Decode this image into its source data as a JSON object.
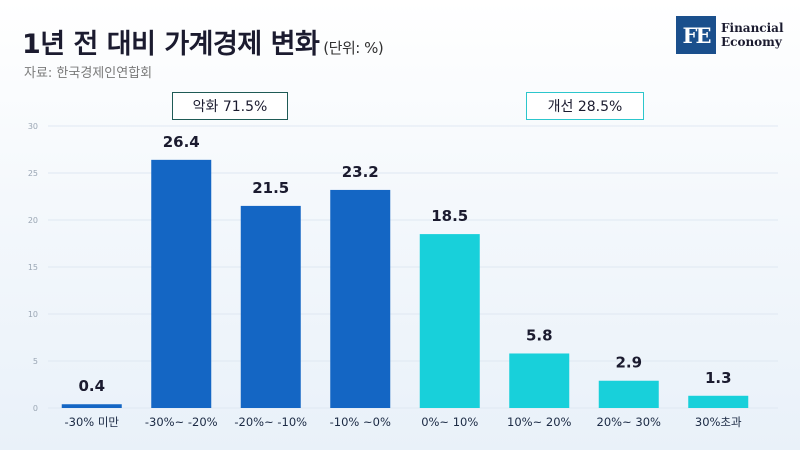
{
  "header": {
    "title": "1년 전 대비 가계경제 변화",
    "unit": "(단위: %)",
    "source": "자료: 한국경제인연합회"
  },
  "logo": {
    "mark": "FE",
    "line1": "Financial",
    "line2": "Economy",
    "color": "#1a4f8c"
  },
  "groups": {
    "bad": {
      "label": "악화 71.5%",
      "border_color": "#1f5b56"
    },
    "good": {
      "label": "개선 28.5%",
      "border_color": "#2cc6cc"
    }
  },
  "chart_data": {
    "type": "bar",
    "categories": [
      "-30% 미만",
      "-30%~ -20%",
      "-20%~ -10%",
      "-10% ~0%",
      "0%~ 10%",
      "10%~ 20%",
      "20%~ 30%",
      "30%초과"
    ],
    "values": [
      0.4,
      26.4,
      21.5,
      23.2,
      18.5,
      5.8,
      2.9,
      1.3
    ],
    "value_labels": [
      "0.4",
      "26.4",
      "21.5",
      "23.2",
      "18.5",
      "5.8",
      "2.9",
      "1.3"
    ],
    "colors": [
      "#1466c4",
      "#1466c4",
      "#1466c4",
      "#1466c4",
      "#18d0da",
      "#18d0da",
      "#18d0da",
      "#18d0da"
    ],
    "ylim": [
      0,
      30
    ],
    "yticks": [
      0,
      5,
      10,
      15,
      20,
      25,
      30
    ],
    "grid": true,
    "xlabel": "",
    "ylabel": ""
  }
}
